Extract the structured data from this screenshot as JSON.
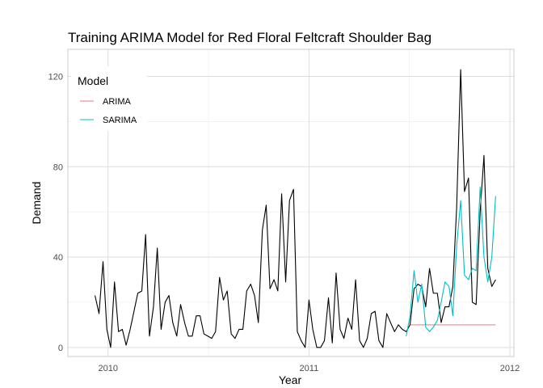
{
  "chart_data": {
    "type": "line",
    "title": "Training ARIMA Model for Red Floral Feltcraft Shoulder Bag",
    "xlabel": "Year",
    "ylabel": "Demand",
    "xlim": [
      2009.8,
      2012.02
    ],
    "ylim": [
      -4,
      132
    ],
    "x_ticks": [
      2010,
      2011,
      2012
    ],
    "x_tick_labels": [
      "2010",
      "2011",
      "2012"
    ],
    "y_ticks": [
      0,
      40,
      80,
      120
    ],
    "y_tick_labels": [
      "0",
      "40",
      "80",
      "120"
    ],
    "grid": true,
    "legend": {
      "title": "Model",
      "position": "top-left",
      "entries": [
        {
          "label": "ARIMA",
          "color": "#F8766D"
        },
        {
          "label": "SARIMA",
          "color": "#00BFC4"
        }
      ]
    },
    "series": [
      {
        "color": "#000000",
        "role": "actual",
        "x": [
          2009.935,
          2009.955,
          2009.975,
          2009.994,
          2010.013,
          2010.032,
          2010.052,
          2010.071,
          2010.09,
          2010.11,
          2010.129,
          2010.148,
          2010.168,
          2010.187,
          2010.206,
          2010.226,
          2010.245,
          2010.264,
          2010.284,
          2010.303,
          2010.322,
          2010.342,
          2010.361,
          2010.381,
          2010.4,
          2010.419,
          2010.439,
          2010.458,
          2010.477,
          2010.497,
          2010.516,
          2010.535,
          2010.555,
          2010.574,
          2010.593,
          2010.613,
          2010.632,
          2010.652,
          2010.671,
          2010.69,
          2010.71,
          2010.729,
          2010.748,
          2010.768,
          2010.787,
          2010.806,
          2010.826,
          2010.845,
          2010.864,
          2010.884,
          2010.903,
          2010.923,
          2010.942,
          2010.961,
          2010.981,
          2011.0,
          2011.019,
          2011.039,
          2011.058,
          2011.077,
          2011.097,
          2011.116,
          2011.135,
          2011.155,
          2011.174,
          2011.194,
          2011.213,
          2011.232,
          2011.252,
          2011.271,
          2011.29,
          2011.31,
          2011.329,
          2011.348,
          2011.368,
          2011.387,
          2011.406,
          2011.426,
          2011.445,
          2011.465,
          2011.484,
          2011.503,
          2011.523,
          2011.542,
          2011.561,
          2011.581,
          2011.6,
          2011.619,
          2011.639,
          2011.658,
          2011.677,
          2011.697,
          2011.716,
          2011.735,
          2011.755,
          2011.774,
          2011.794,
          2011.813,
          2011.832,
          2011.852,
          2011.871,
          2011.89,
          2011.91,
          2011.929
        ],
        "values": [
          23,
          15,
          38,
          8,
          0,
          29,
          7,
          8,
          1,
          8,
          16,
          24,
          25,
          50,
          5,
          18,
          44,
          8,
          20,
          23,
          11,
          5,
          19,
          11,
          5,
          5,
          14,
          14,
          6,
          5,
          4,
          7,
          31,
          21,
          25,
          6,
          4,
          8,
          8,
          25,
          28,
          23,
          11,
          52,
          63,
          26,
          30,
          25,
          68,
          29,
          65,
          70,
          7,
          3,
          0,
          21,
          8,
          0,
          0,
          3,
          22,
          2,
          33,
          8,
          4,
          13,
          8,
          30,
          3,
          0,
          4,
          15,
          16,
          3,
          0,
          15,
          11,
          7,
          10,
          8,
          7,
          10,
          26,
          28,
          27,
          18,
          35,
          24,
          24,
          11,
          18,
          18,
          27,
          62,
          123,
          69,
          75,
          20,
          19,
          60,
          85,
          35,
          27,
          30
        ]
      },
      {
        "name": "ARIMA",
        "color": "#F8766D",
        "x": [
          2011.503,
          2011.523,
          2011.542,
          2011.561,
          2011.581,
          2011.6,
          2011.619,
          2011.639,
          2011.658,
          2011.677,
          2011.697,
          2011.716,
          2011.735,
          2011.755,
          2011.774,
          2011.794,
          2011.813,
          2011.832,
          2011.852,
          2011.871,
          2011.89,
          2011.91,
          2011.929
        ],
        "values": [
          10,
          10,
          10,
          10,
          10,
          10,
          10,
          10,
          10,
          10,
          10,
          10,
          10,
          10,
          10,
          10,
          10,
          10,
          10,
          10,
          10,
          10,
          10
        ]
      },
      {
        "name": "SARIMA",
        "color": "#00BFC4",
        "x": [
          2011.484,
          2011.503,
          2011.523,
          2011.542,
          2011.561,
          2011.581,
          2011.6,
          2011.619,
          2011.639,
          2011.658,
          2011.677,
          2011.697,
          2011.716,
          2011.735,
          2011.755,
          2011.774,
          2011.794,
          2011.813,
          2011.832,
          2011.852,
          2011.871,
          2011.89,
          2011.91,
          2011.929
        ],
        "values": [
          5,
          14,
          34,
          20,
          28,
          9,
          7,
          9,
          12,
          20,
          29,
          27,
          14,
          45,
          65,
          32,
          30,
          35,
          34,
          71,
          40,
          29,
          40,
          67
        ]
      }
    ]
  }
}
